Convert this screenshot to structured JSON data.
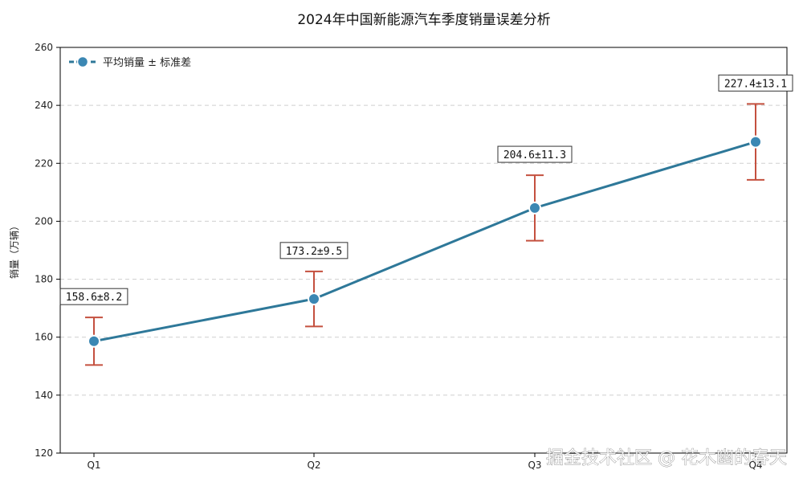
{
  "watermark": "掘金技术社区 @ 花木幽的春天",
  "chart_data": {
    "type": "line",
    "title": "2024年中国新能源汽车季度销量误差分析",
    "xlabel": "",
    "ylabel": "销量（万辆）",
    "categories": [
      "Q1",
      "Q2",
      "Q3",
      "Q4"
    ],
    "series": [
      {
        "name": "平均销量 ± 标准差",
        "values": [
          158.6,
          173.2,
          204.6,
          227.4
        ],
        "errors": [
          8.2,
          9.5,
          11.3,
          13.1
        ],
        "labels": [
          "158.6±8.2",
          "173.2±9.5",
          "204.6±11.3",
          "227.4±13.1"
        ],
        "line_color": "#2e7899",
        "marker_color": "#3b87b3",
        "error_color": "#c4503f"
      }
    ],
    "ylim": [
      120,
      260
    ],
    "yticks": [
      120,
      140,
      160,
      180,
      200,
      220,
      240,
      260
    ],
    "grid": "horizontal dashed",
    "legend": "top-left"
  }
}
